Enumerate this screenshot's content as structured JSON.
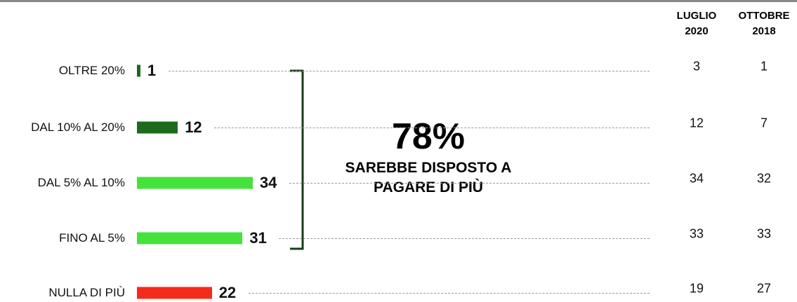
{
  "chart_data": {
    "type": "bar",
    "orientation": "horizontal",
    "categories": [
      "OLTRE 20%",
      "DAL 10% AL 20%",
      "DAL 5% AL 10%",
      "FINO AL 5%",
      "NULLA DI PIÙ"
    ],
    "values": [
      1,
      12,
      34,
      31,
      22
    ],
    "colors": [
      "#1d6a1d",
      "#1d6a1d",
      "#46e23c",
      "#46e23c",
      "#f42b1a"
    ],
    "annotation": {
      "headline": "78%",
      "text": "SAREBBE DISPOSTO A PAGARE DI PIÙ"
    },
    "comparison": {
      "columns": [
        "LUGLIO 2020",
        "OTTOBRE 2018"
      ],
      "values": [
        [
          3,
          12,
          34,
          33,
          19
        ],
        [
          1,
          7,
          32,
          33,
          27
        ]
      ]
    }
  }
}
